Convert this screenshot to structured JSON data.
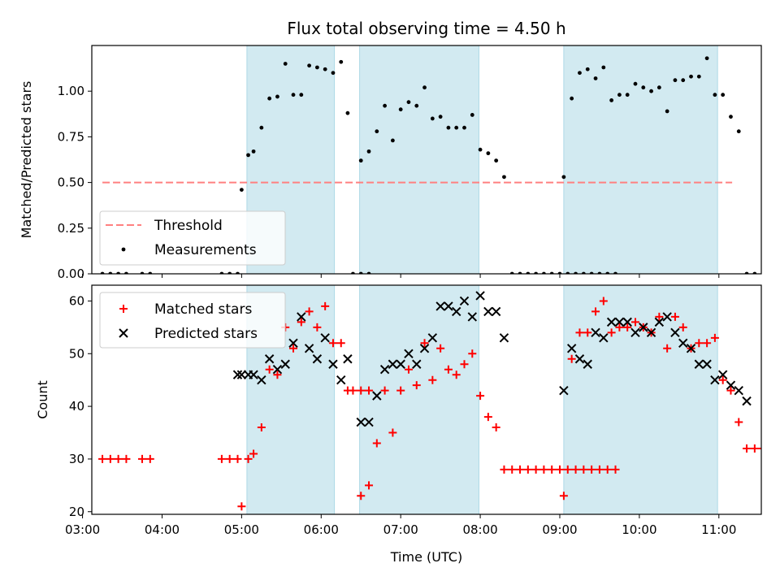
{
  "title": "Flux total observing time = 4.50 h",
  "xlabel": "Time (UTC)",
  "x_ticks": [
    "03:00",
    "04:00",
    "05:00",
    "06:00",
    "07:00",
    "08:00",
    "09:00",
    "10:00",
    "11:00"
  ],
  "colors": {
    "band": "#add8e6",
    "threshold": "#ff8080",
    "matched": "#ff0000",
    "predicted": "#000000",
    "measurement": "#000000"
  },
  "chart_data": [
    {
      "type": "scatter",
      "ylabel": "Matched/Predicted stars",
      "xlim": [
        "03:07",
        "11:32"
      ],
      "ylim": [
        0,
        1.25
      ],
      "y_ticks": [
        "0.00",
        "0.25",
        "0.50",
        "0.75",
        "1.00"
      ],
      "legend_placement": "lower-left",
      "threshold": {
        "name": "Threshold",
        "value": 0.5,
        "x": [
          "03:15",
          "11:10"
        ]
      },
      "observing_bands": [
        [
          "05:04",
          "06:10"
        ],
        [
          "06:29",
          "07:59"
        ],
        [
          "09:03",
          "10:59"
        ]
      ],
      "series": [
        {
          "name": "Measurements",
          "points": [
            [
              "03:15",
              0
            ],
            [
              "03:21",
              0
            ],
            [
              "03:27",
              0
            ],
            [
              "03:33",
              0
            ],
            [
              "03:45",
              0
            ],
            [
              "03:51",
              0
            ],
            [
              "04:45",
              0
            ],
            [
              "04:51",
              0
            ],
            [
              "04:57",
              0
            ],
            [
              "05:00",
              0.46
            ],
            [
              "05:05",
              0.65
            ],
            [
              "05:09",
              0.67
            ],
            [
              "05:15",
              0.8
            ],
            [
              "05:21",
              0.96
            ],
            [
              "05:27",
              0.97
            ],
            [
              "05:33",
              1.15
            ],
            [
              "05:39",
              0.98
            ],
            [
              "05:45",
              0.98
            ],
            [
              "05:51",
              1.14
            ],
            [
              "05:57",
              1.13
            ],
            [
              "06:03",
              1.12
            ],
            [
              "06:09",
              1.1
            ],
            [
              "06:15",
              1.16
            ],
            [
              "06:20",
              0.88
            ],
            [
              "06:24",
              0
            ],
            [
              "06:30",
              0
            ],
            [
              "06:36",
              0
            ],
            [
              "06:30",
              0.62
            ],
            [
              "06:36",
              0.67
            ],
            [
              "06:42",
              0.78
            ],
            [
              "06:48",
              0.92
            ],
            [
              "06:54",
              0.73
            ],
            [
              "07:00",
              0.9
            ],
            [
              "07:06",
              0.94
            ],
            [
              "07:12",
              0.92
            ],
            [
              "07:18",
              1.02
            ],
            [
              "07:24",
              0.85
            ],
            [
              "07:30",
              0.86
            ],
            [
              "07:36",
              0.8
            ],
            [
              "07:42",
              0.8
            ],
            [
              "07:48",
              0.8
            ],
            [
              "07:54",
              0.87
            ],
            [
              "08:00",
              0.68
            ],
            [
              "08:06",
              0.66
            ],
            [
              "08:12",
              0.62
            ],
            [
              "08:18",
              0.53
            ],
            [
              "08:24",
              0
            ],
            [
              "08:30",
              0
            ],
            [
              "08:36",
              0
            ],
            [
              "08:42",
              0
            ],
            [
              "08:48",
              0
            ],
            [
              "08:54",
              0
            ],
            [
              "09:00",
              0
            ],
            [
              "09:06",
              0
            ],
            [
              "09:12",
              0
            ],
            [
              "09:18",
              0
            ],
            [
              "09:24",
              0
            ],
            [
              "09:30",
              0
            ],
            [
              "09:36",
              0
            ],
            [
              "09:42",
              0
            ],
            [
              "09:03",
              0.53
            ],
            [
              "09:09",
              0.96
            ],
            [
              "09:15",
              1.1
            ],
            [
              "09:21",
              1.12
            ],
            [
              "09:27",
              1.07
            ],
            [
              "09:33",
              1.13
            ],
            [
              "09:39",
              0.95
            ],
            [
              "09:45",
              0.98
            ],
            [
              "09:51",
              0.98
            ],
            [
              "09:57",
              1.04
            ],
            [
              "10:03",
              1.02
            ],
            [
              "10:09",
              1.0
            ],
            [
              "10:15",
              1.02
            ],
            [
              "10:21",
              0.89
            ],
            [
              "10:27",
              1.06
            ],
            [
              "10:33",
              1.06
            ],
            [
              "10:39",
              1.08
            ],
            [
              "10:45",
              1.08
            ],
            [
              "10:51",
              1.18
            ],
            [
              "10:57",
              0.98
            ],
            [
              "11:03",
              0.98
            ],
            [
              "11:09",
              0.86
            ],
            [
              "11:15",
              0.78
            ],
            [
              "11:21",
              0
            ],
            [
              "11:27",
              0
            ]
          ]
        }
      ]
    },
    {
      "type": "scatter",
      "ylabel": "Count",
      "xlim": [
        "03:07",
        "11:32"
      ],
      "ylim": [
        19.5,
        63
      ],
      "y_ticks": [
        "20",
        "30",
        "40",
        "50",
        "60"
      ],
      "legend_placement": "upper-left",
      "observing_bands": [
        [
          "05:04",
          "06:10"
        ],
        [
          "06:29",
          "07:59"
        ],
        [
          "09:03",
          "10:59"
        ]
      ],
      "series": [
        {
          "name": "Matched stars",
          "points": [
            [
              "03:15",
              30
            ],
            [
              "03:21",
              30
            ],
            [
              "03:27",
              30
            ],
            [
              "03:33",
              30
            ],
            [
              "03:45",
              30
            ],
            [
              "03:51",
              30
            ],
            [
              "04:45",
              30
            ],
            [
              "04:51",
              30
            ],
            [
              "04:57",
              30
            ],
            [
              "05:00",
              21
            ],
            [
              "05:05",
              30
            ],
            [
              "05:09",
              31
            ],
            [
              "05:15",
              36
            ],
            [
              "05:21",
              47
            ],
            [
              "05:27",
              46
            ],
            [
              "05:33",
              55
            ],
            [
              "05:39",
              51
            ],
            [
              "05:45",
              56
            ],
            [
              "05:51",
              58
            ],
            [
              "05:57",
              55
            ],
            [
              "06:03",
              59
            ],
            [
              "06:09",
              52
            ],
            [
              "06:15",
              52
            ],
            [
              "06:20",
              43
            ],
            [
              "06:24",
              43
            ],
            [
              "06:30",
              43
            ],
            [
              "06:36",
              43
            ],
            [
              "06:30",
              23
            ],
            [
              "06:36",
              25
            ],
            [
              "06:42",
              33
            ],
            [
              "06:48",
              43
            ],
            [
              "06:54",
              35
            ],
            [
              "07:00",
              43
            ],
            [
              "07:06",
              47
            ],
            [
              "07:12",
              44
            ],
            [
              "07:18",
              52
            ],
            [
              "07:24",
              45
            ],
            [
              "07:30",
              51
            ],
            [
              "07:36",
              47
            ],
            [
              "07:42",
              46
            ],
            [
              "07:48",
              48
            ],
            [
              "07:54",
              50
            ],
            [
              "08:00",
              42
            ],
            [
              "08:06",
              38
            ],
            [
              "08:12",
              36
            ],
            [
              "08:18",
              28
            ],
            [
              "08:24",
              28
            ],
            [
              "08:30",
              28
            ],
            [
              "08:36",
              28
            ],
            [
              "08:42",
              28
            ],
            [
              "08:48",
              28
            ],
            [
              "08:54",
              28
            ],
            [
              "09:00",
              28
            ],
            [
              "09:06",
              28
            ],
            [
              "09:12",
              28
            ],
            [
              "09:18",
              28
            ],
            [
              "09:24",
              28
            ],
            [
              "09:30",
              28
            ],
            [
              "09:36",
              28
            ],
            [
              "09:42",
              28
            ],
            [
              "09:03",
              23
            ],
            [
              "09:09",
              49
            ],
            [
              "09:15",
              54
            ],
            [
              "09:21",
              54
            ],
            [
              "09:27",
              58
            ],
            [
              "09:33",
              60
            ],
            [
              "09:39",
              54
            ],
            [
              "09:45",
              55
            ],
            [
              "09:51",
              55
            ],
            [
              "09:57",
              56
            ],
            [
              "10:03",
              55
            ],
            [
              "10:09",
              54
            ],
            [
              "10:15",
              57
            ],
            [
              "10:21",
              51
            ],
            [
              "10:27",
              57
            ],
            [
              "10:33",
              55
            ],
            [
              "10:39",
              51
            ],
            [
              "10:45",
              52
            ],
            [
              "10:51",
              52
            ],
            [
              "10:57",
              53
            ],
            [
              "11:03",
              45
            ],
            [
              "11:09",
              43
            ],
            [
              "11:15",
              37
            ],
            [
              "11:21",
              32
            ],
            [
              "11:27",
              32
            ],
            [
              "11:33",
              32
            ]
          ]
        },
        {
          "name": "Predicted stars",
          "points": [
            [
              "04:57",
              46
            ],
            [
              "05:00",
              46
            ],
            [
              "05:05",
              46
            ],
            [
              "05:09",
              46
            ],
            [
              "05:15",
              45
            ],
            [
              "05:21",
              49
            ],
            [
              "05:27",
              47
            ],
            [
              "05:33",
              48
            ],
            [
              "05:39",
              52
            ],
            [
              "05:45",
              57
            ],
            [
              "05:51",
              51
            ],
            [
              "05:57",
              49
            ],
            [
              "06:03",
              53
            ],
            [
              "06:09",
              48
            ],
            [
              "06:15",
              45
            ],
            [
              "06:20",
              49
            ],
            [
              "06:30",
              37
            ],
            [
              "06:36",
              37
            ],
            [
              "06:42",
              42
            ],
            [
              "06:48",
              47
            ],
            [
              "06:54",
              48
            ],
            [
              "07:00",
              48
            ],
            [
              "07:06",
              50
            ],
            [
              "07:12",
              48
            ],
            [
              "07:18",
              51
            ],
            [
              "07:24",
              53
            ],
            [
              "07:30",
              59
            ],
            [
              "07:36",
              59
            ],
            [
              "07:42",
              58
            ],
            [
              "07:48",
              60
            ],
            [
              "07:54",
              57
            ],
            [
              "08:00",
              61
            ],
            [
              "08:06",
              58
            ],
            [
              "08:12",
              58
            ],
            [
              "08:18",
              53
            ],
            [
              "09:03",
              43
            ],
            [
              "09:09",
              51
            ],
            [
              "09:15",
              49
            ],
            [
              "09:21",
              48
            ],
            [
              "09:27",
              54
            ],
            [
              "09:33",
              53
            ],
            [
              "09:39",
              56
            ],
            [
              "09:45",
              56
            ],
            [
              "09:51",
              56
            ],
            [
              "09:57",
              54
            ],
            [
              "10:03",
              55
            ],
            [
              "10:09",
              54
            ],
            [
              "10:15",
              56
            ],
            [
              "10:21",
              57
            ],
            [
              "10:27",
              54
            ],
            [
              "10:33",
              52
            ],
            [
              "10:39",
              51
            ],
            [
              "10:45",
              48
            ],
            [
              "10:51",
              48
            ],
            [
              "10:57",
              45
            ],
            [
              "11:03",
              46
            ],
            [
              "11:09",
              44
            ],
            [
              "11:15",
              43
            ],
            [
              "11:21",
              41
            ]
          ]
        }
      ]
    }
  ]
}
